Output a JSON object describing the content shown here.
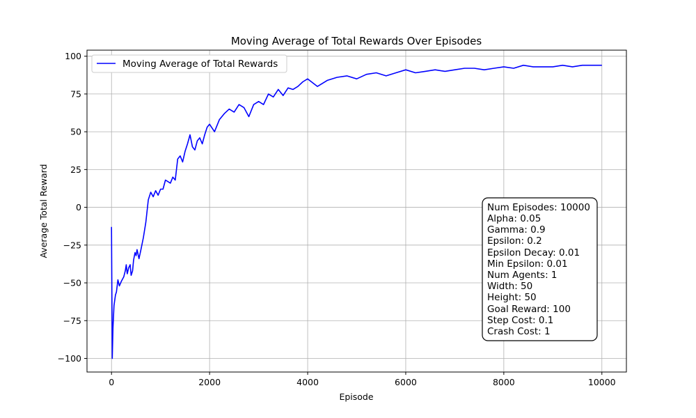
{
  "chart_data": {
    "type": "line",
    "title": "Moving Average of Total Rewards Over Episodes",
    "xlabel": "Episode",
    "ylabel": "Average Total Reward",
    "xlim": [
      -500,
      10500
    ],
    "ylim": [
      -109,
      104
    ],
    "x_ticks": [
      0,
      2000,
      4000,
      6000,
      8000,
      10000
    ],
    "y_ticks": [
      -100,
      -75,
      -50,
      -25,
      0,
      25,
      50,
      75,
      100
    ],
    "grid": true,
    "legend_position": "top-left",
    "series": [
      {
        "name": "Moving Average of Total Rewards",
        "color": "#0000ff",
        "x": [
          0,
          15,
          30,
          50,
          80,
          100,
          130,
          160,
          200,
          250,
          280,
          300,
          320,
          350,
          380,
          400,
          430,
          450,
          480,
          500,
          520,
          560,
          600,
          650,
          700,
          750,
          800,
          850,
          900,
          950,
          1000,
          1050,
          1100,
          1150,
          1200,
          1250,
          1300,
          1350,
          1400,
          1450,
          1500,
          1550,
          1600,
          1650,
          1700,
          1750,
          1800,
          1850,
          1900,
          1950,
          2000,
          2100,
          2200,
          2300,
          2400,
          2500,
          2600,
          2700,
          2800,
          2900,
          3000,
          3100,
          3200,
          3300,
          3400,
          3500,
          3600,
          3700,
          3800,
          3900,
          4000,
          4200,
          4400,
          4600,
          4800,
          5000,
          5200,
          5400,
          5600,
          5800,
          6000,
          6200,
          6400,
          6600,
          6800,
          7000,
          7200,
          7400,
          7600,
          7800,
          8000,
          8200,
          8400,
          8600,
          8800,
          9000,
          9200,
          9400,
          9600,
          9800,
          10000
        ],
        "y": [
          -13,
          -100,
          -80,
          -65,
          -58,
          -56,
          -48,
          -52,
          -49,
          -46,
          -42,
          -38,
          -44,
          -40,
          -38,
          -45,
          -42,
          -35,
          -30,
          -32,
          -28,
          -34,
          -28,
          -20,
          -10,
          5,
          10,
          7,
          11,
          8,
          12,
          12,
          18,
          17,
          16,
          20,
          18,
          32,
          34,
          30,
          37,
          42,
          48,
          40,
          38,
          44,
          46,
          42,
          48,
          53,
          55,
          50,
          58,
          62,
          65,
          63,
          68,
          66,
          60,
          68,
          70,
          68,
          75,
          73,
          78,
          74,
          79,
          78,
          80,
          83,
          85,
          80,
          84,
          86,
          87,
          85,
          88,
          89,
          87,
          89,
          91,
          89,
          90,
          91,
          90,
          91,
          92,
          92,
          91,
          92,
          93,
          92,
          94,
          93,
          93,
          93,
          94,
          93,
          94,
          94,
          94
        ]
      }
    ]
  },
  "legend": {
    "label": "Moving Average of Total Rewards"
  },
  "info_box": {
    "lines": [
      "Num Episodes: 10000",
      "Alpha: 0.05",
      "Gamma: 0.9",
      "Epsilon: 0.2",
      "Epsilon Decay: 0.01",
      "Min Epsilon: 0.01",
      "Num Agents: 1",
      "Width: 50",
      "Height: 50",
      "Goal Reward: 100",
      "Step Cost: 0.1",
      "Crash Cost: 1"
    ]
  }
}
